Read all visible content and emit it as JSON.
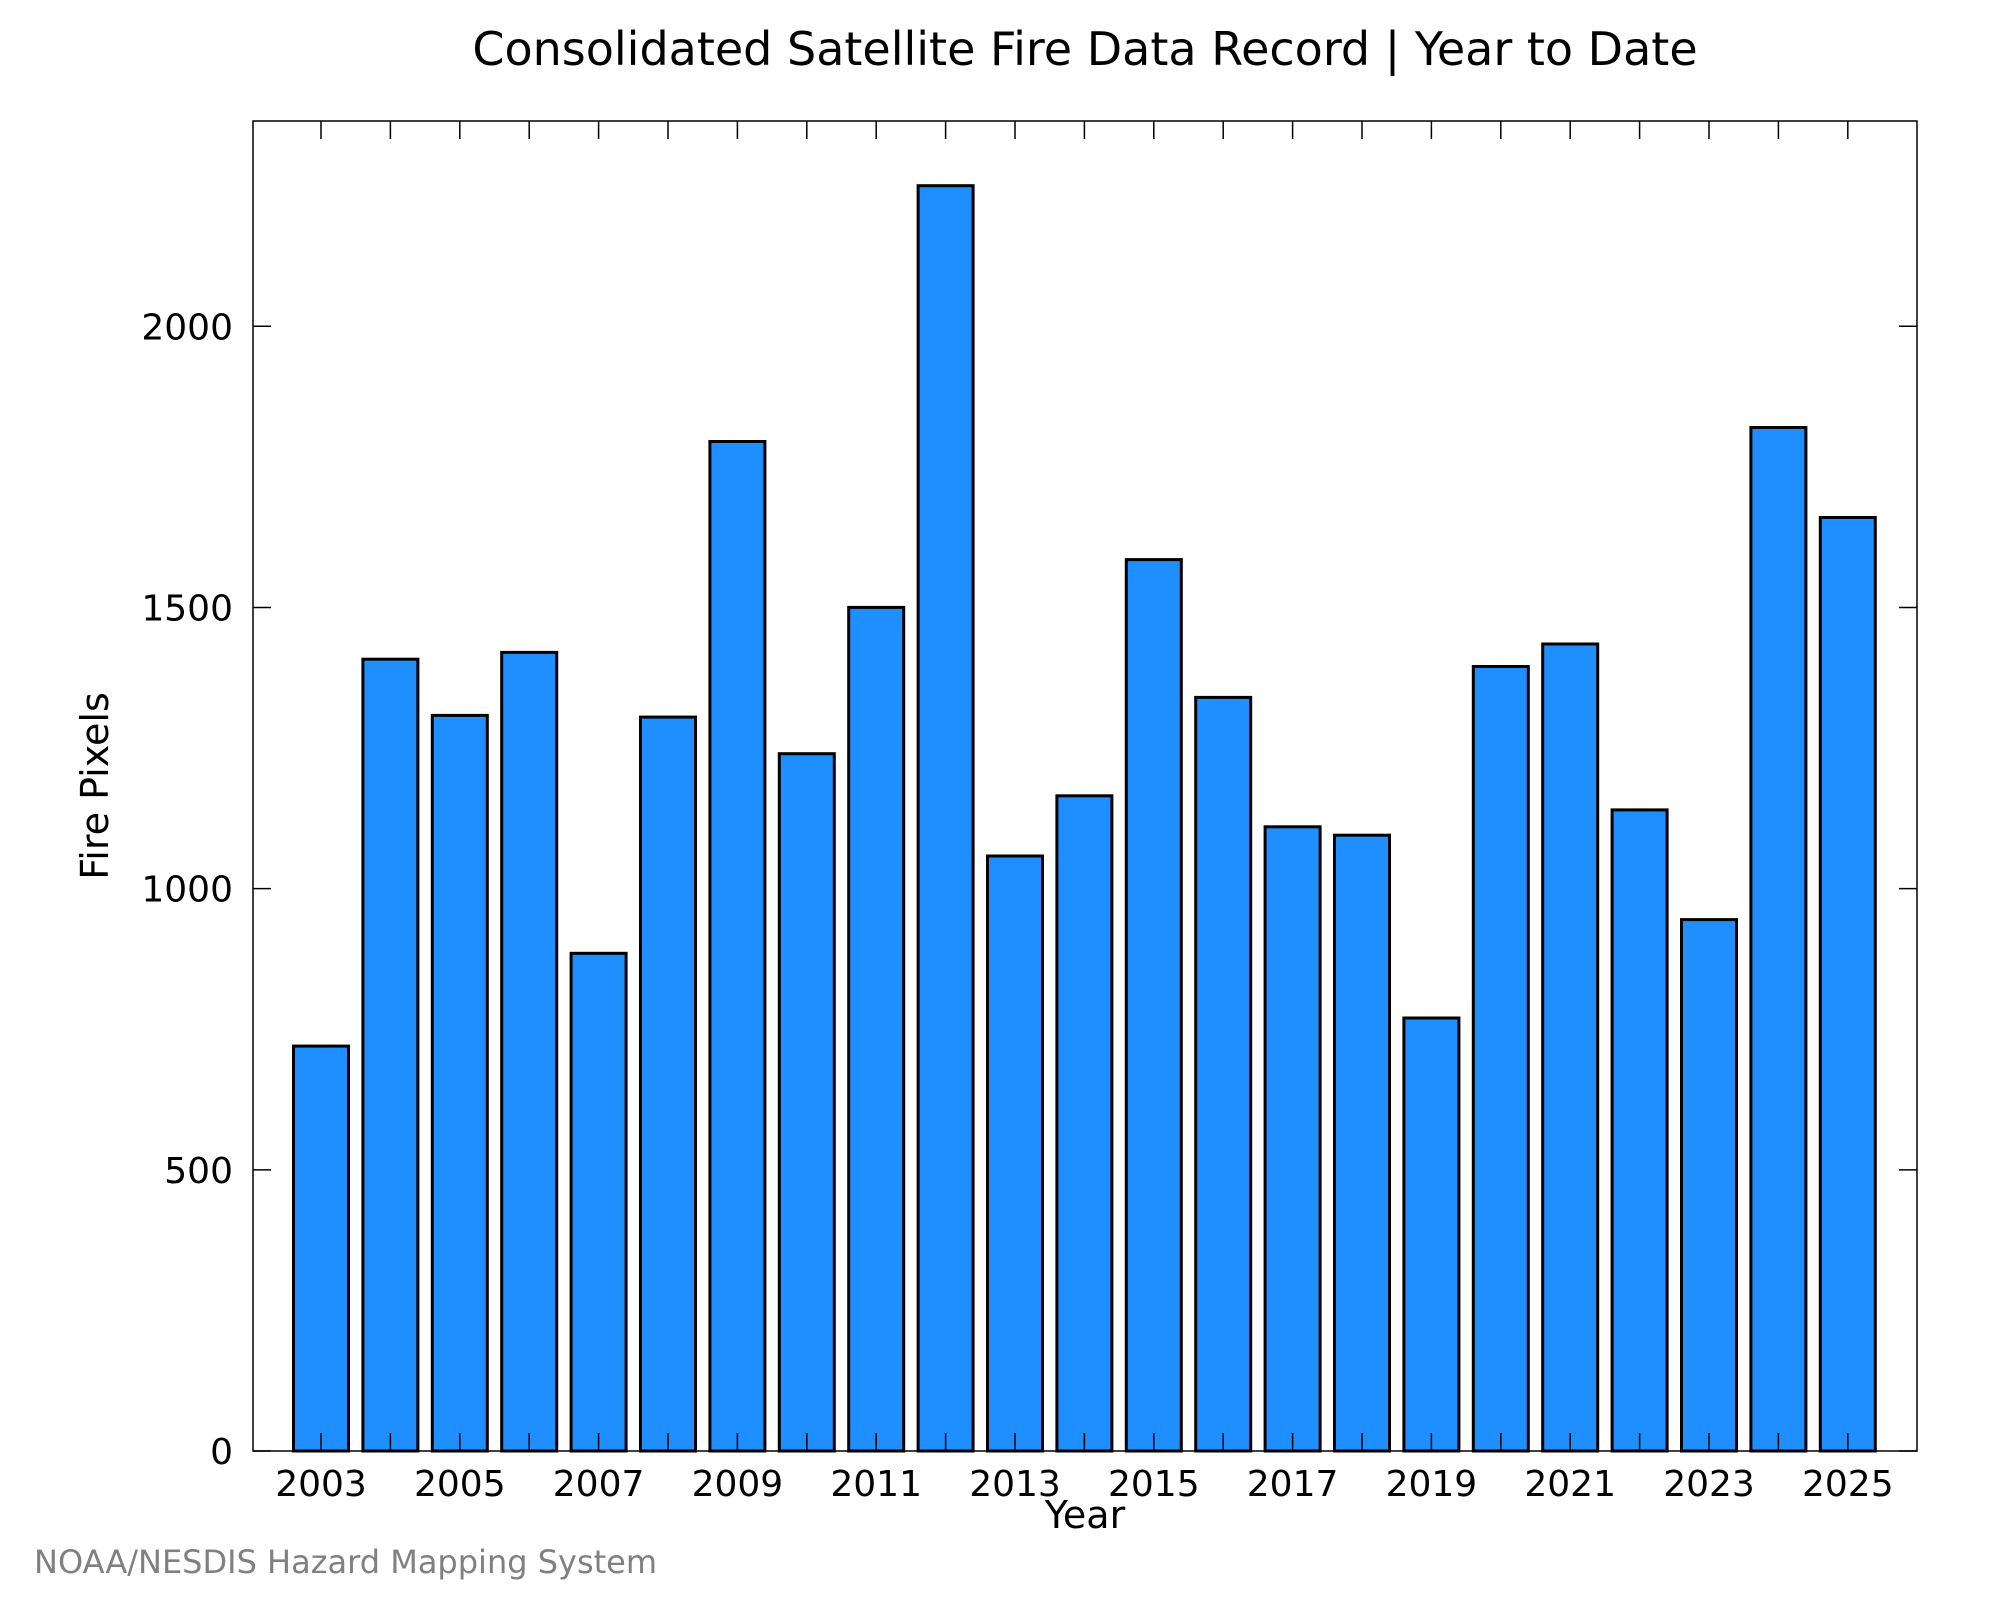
{
  "credit": "NOAA/NESDIS Hazard Mapping System",
  "colors": {
    "bar_fill": "#1f8fff",
    "bar_stroke": "#000000",
    "frame": "#000000",
    "credit_text": "#808080"
  },
  "chart_data": {
    "type": "bar",
    "title": "Consolidated Satellite Fire Data Record | Year to Date",
    "xlabel": "Year",
    "ylabel": "Fire Pixels",
    "categories": [
      "2003",
      "2004",
      "2005",
      "2006",
      "2007",
      "2008",
      "2009",
      "2010",
      "2011",
      "2012",
      "2013",
      "2014",
      "2015",
      "2016",
      "2017",
      "2018",
      "2019",
      "2020",
      "2021",
      "2022",
      "2023",
      "2024",
      "2025"
    ],
    "values": [
      720,
      1408,
      1308,
      1420,
      885,
      1305,
      1795,
      1240,
      1500,
      2250,
      1058,
      1165,
      1585,
      1340,
      1110,
      1095,
      770,
      1395,
      1435,
      1140,
      945,
      1820,
      1660
    ],
    "x_tick_labels": [
      "2003",
      "2005",
      "2007",
      "2009",
      "2011",
      "2013",
      "2015",
      "2017",
      "2019",
      "2021",
      "2023",
      "2025"
    ],
    "y_ticks": [
      0,
      500,
      1000,
      1500,
      2000
    ],
    "ylim": [
      0,
      2365
    ],
    "grid": false,
    "legend": "none"
  }
}
